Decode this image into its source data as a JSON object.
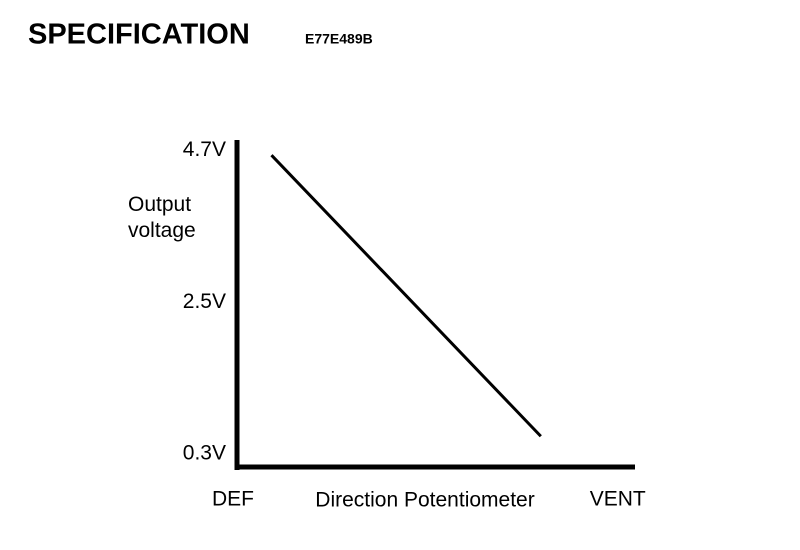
{
  "chart_data": {
    "type": "line",
    "title": "SPECIFICATION",
    "subtitle": "E77E489B",
    "y_label": "Output voltage",
    "x_label": "Direction Potentiometer",
    "x": [
      10,
      80
    ],
    "series": [
      {
        "name": null,
        "color": "#000000",
        "values": [
          4.63,
          0.56
        ]
      }
    ],
    "xlim": [
      0,
      105
    ],
    "xticks": [
      {
        "value": 0,
        "label": "DEF"
      },
      {
        "value": 100,
        "label": "VENT"
      }
    ],
    "ylim": [
      0.1,
      4.85
    ],
    "yticks": [
      {
        "value": 0.3,
        "label": "0.3V"
      },
      {
        "value": 2.5,
        "label": "2.5V"
      },
      {
        "value": 4.7,
        "label": "4.7V"
      }
    ],
    "grid": false
  }
}
